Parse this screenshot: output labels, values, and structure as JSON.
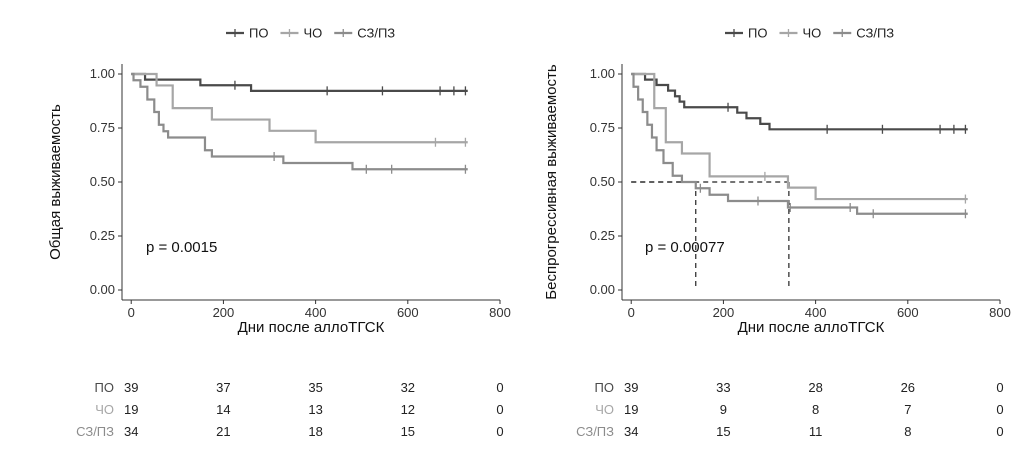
{
  "colors": {
    "ПО": "#4a4a4a",
    "ЧО": "#a6a6a6",
    "СЗ/ПЗ": "#8c8c8c",
    "axis": "#333333",
    "ref_line": "#222222"
  },
  "chart_data": [
    {
      "type": "line",
      "subtype": "kaplan-meier",
      "title": "",
      "xlabel": "Дни после аллоТГСК",
      "ylabel": "Общая выживаемость",
      "xlim": [
        -20,
        800
      ],
      "ylim": [
        0,
        1.0
      ],
      "xticks": [
        0,
        200,
        400,
        600,
        800
      ],
      "yticks": [
        0.0,
        0.25,
        0.5,
        0.75,
        1.0
      ],
      "ytick_labels": [
        "0.00",
        "0.25",
        "0.50",
        "0.75",
        "1.00"
      ],
      "grid": false,
      "legend_position": "top",
      "annotation": "p = 0.0015",
      "series": [
        {
          "name": "ПО",
          "color": "#4a4a4a",
          "x": [
            0,
            10,
            30,
            150,
            260,
            730
          ],
          "y": [
            1.0,
            1.0,
            0.974,
            0.948,
            0.922,
            0.922
          ],
          "censor_x": [
            225,
            425,
            545,
            670,
            700,
            725
          ],
          "censor_y": [
            0.948,
            0.922,
            0.922,
            0.922,
            0.922,
            0.922
          ]
        },
        {
          "name": "ЧО",
          "color": "#a6a6a6",
          "x": [
            0,
            25,
            55,
            90,
            175,
            300,
            400,
            730
          ],
          "y": [
            1.0,
            1.0,
            0.947,
            0.842,
            0.789,
            0.737,
            0.684,
            0.684
          ],
          "censor_x": [
            660,
            725
          ],
          "censor_y": [
            0.684,
            0.684
          ]
        },
        {
          "name": "СЗ/ПЗ",
          "color": "#8c8c8c",
          "x": [
            0,
            5,
            20,
            35,
            50,
            60,
            70,
            80,
            160,
            175,
            330,
            480,
            730
          ],
          "y": [
            1.0,
            0.971,
            0.941,
            0.882,
            0.824,
            0.765,
            0.735,
            0.706,
            0.647,
            0.618,
            0.588,
            0.559,
            0.559
          ],
          "censor_x": [
            310,
            510,
            565,
            725
          ],
          "censor_y": [
            0.618,
            0.559,
            0.559,
            0.559
          ]
        }
      ],
      "risk_table": {
        "x": [
          0,
          200,
          400,
          600,
          800
        ],
        "rows": [
          {
            "name": "ПО",
            "values": [
              "39",
              "37",
              "35",
              "32",
              "0"
            ]
          },
          {
            "name": "ЧО",
            "values": [
              "19",
              "14",
              "13",
              "12",
              "0"
            ]
          },
          {
            "name": "СЗ/ПЗ",
            "values": [
              "34",
              "21",
              "18",
              "15",
              "0"
            ]
          }
        ]
      }
    },
    {
      "type": "line",
      "subtype": "kaplan-meier",
      "title": "",
      "xlabel": "Дни после аллоТГСК",
      "ylabel": "Беспрогрессивная выживаемость",
      "xlim": [
        -20,
        800
      ],
      "ylim": [
        0,
        1.0
      ],
      "xticks": [
        0,
        200,
        400,
        600,
        800
      ],
      "yticks": [
        0.0,
        0.25,
        0.5,
        0.75,
        1.0
      ],
      "ytick_labels": [
        "0.00",
        "0.25",
        "0.50",
        "0.75",
        "1.00"
      ],
      "grid": false,
      "legend_position": "top",
      "annotation": "p = 0.00077",
      "median_lines": [
        {
          "x": 140,
          "y": 0.5
        },
        {
          "x": 342,
          "y": 0.5
        }
      ],
      "series": [
        {
          "name": "ПО",
          "color": "#4a4a4a",
          "x": [
            0,
            30,
            55,
            80,
            95,
            105,
            115,
            130,
            230,
            250,
            280,
            300,
            340,
            730
          ],
          "y": [
            1.0,
            0.974,
            0.949,
            0.923,
            0.897,
            0.872,
            0.846,
            0.846,
            0.821,
            0.795,
            0.769,
            0.744,
            0.744,
            0.744
          ],
          "censor_x": [
            210,
            425,
            545,
            670,
            700,
            725
          ],
          "censor_y": [
            0.846,
            0.744,
            0.744,
            0.744,
            0.744,
            0.744
          ]
        },
        {
          "name": "ЧО",
          "color": "#a6a6a6",
          "x": [
            0,
            30,
            50,
            75,
            110,
            170,
            340,
            400,
            730
          ],
          "y": [
            1.0,
            1.0,
            0.842,
            0.684,
            0.632,
            0.526,
            0.474,
            0.421,
            0.421
          ],
          "censor_x": [
            290,
            725
          ],
          "censor_y": [
            0.526,
            0.421
          ]
        },
        {
          "name": "СЗ/ПЗ",
          "color": "#8c8c8c",
          "x": [
            0,
            5,
            15,
            25,
            35,
            45,
            55,
            70,
            90,
            110,
            140,
            170,
            210,
            250,
            340,
            490,
            730
          ],
          "y": [
            1.0,
            0.941,
            0.882,
            0.824,
            0.765,
            0.706,
            0.647,
            0.588,
            0.529,
            0.5,
            0.471,
            0.441,
            0.412,
            0.412,
            0.382,
            0.353,
            0.353
          ],
          "censor_x": [
            150,
            275,
            345,
            475,
            525,
            725
          ],
          "censor_y": [
            0.471,
            0.412,
            0.382,
            0.382,
            0.353,
            0.353
          ]
        }
      ],
      "risk_table": {
        "x": [
          0,
          200,
          400,
          600,
          800
        ],
        "rows": [
          {
            "name": "ПО",
            "values": [
              "39",
              "33",
              "28",
              "26",
              "0"
            ]
          },
          {
            "name": "ЧО",
            "values": [
              "19",
              "9",
              "8",
              "7",
              "0"
            ]
          },
          {
            "name": "СЗ/ПЗ",
            "values": [
              "34",
              "15",
              "11",
              "8",
              "0"
            ]
          }
        ]
      }
    }
  ]
}
